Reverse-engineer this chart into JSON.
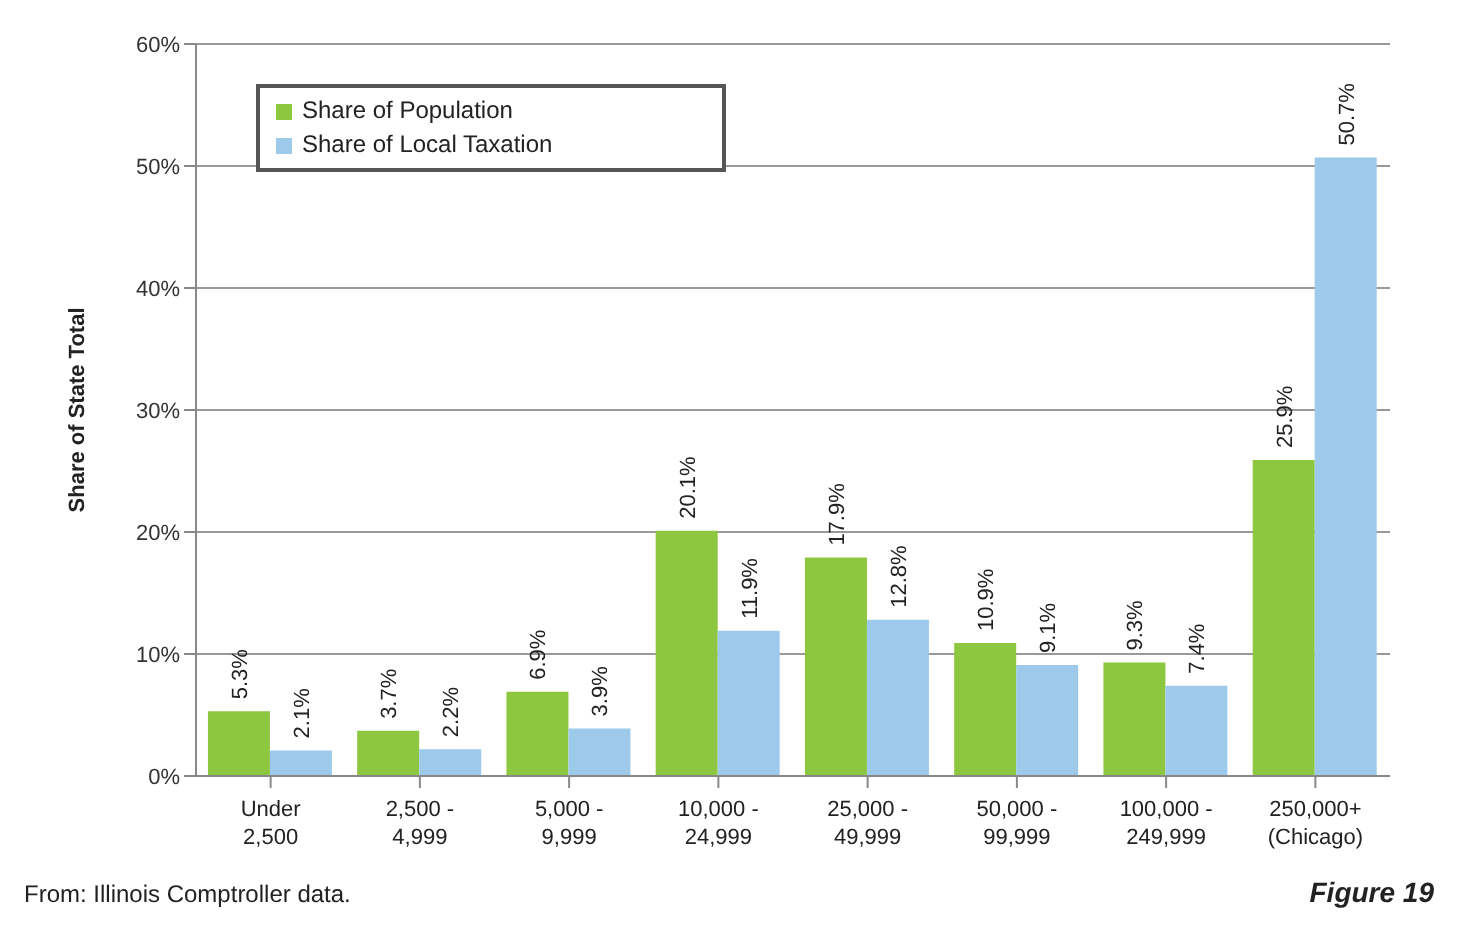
{
  "chart_data": {
    "type": "bar",
    "ylabel": "Share of State Total",
    "categories": [
      "Under\n2,500",
      "2,500 -\n4,999",
      "5,000 -\n9,999",
      "10,000 -\n24,999",
      "25,000 -\n49,999",
      "50,000 -\n99,999",
      "100,000 -\n249,999",
      "250,000+\n(Chicago)"
    ],
    "series": [
      {
        "name": "Share of Population",
        "color": "#8dc63f",
        "values": [
          5.3,
          3.7,
          6.9,
          20.1,
          17.9,
          10.9,
          9.3,
          25.9
        ],
        "value_labels": [
          "5.3%",
          "3.7%",
          "6.9%",
          "20.1%",
          "17.9%",
          "10.9%",
          "9.3%",
          "25.9%"
        ]
      },
      {
        "name": "Share of Local Taxation",
        "color": "#9dc9ea",
        "values": [
          2.1,
          2.2,
          3.9,
          11.9,
          12.8,
          9.1,
          7.4,
          50.7
        ],
        "value_labels": [
          "2.1%",
          "2.2%",
          "3.9%",
          "11.9%",
          "12.8%",
          "9.1%",
          "7.4%",
          "50.7%"
        ]
      }
    ],
    "ylim": [
      0,
      60
    ],
    "yticks": [
      {
        "value": 0,
        "label": "0%"
      },
      {
        "value": 10,
        "label": "10%"
      },
      {
        "value": 20,
        "label": "20%"
      },
      {
        "value": 30,
        "label": "30%"
      },
      {
        "value": 40,
        "label": "40%"
      },
      {
        "value": 50,
        "label": "50%"
      },
      {
        "value": 60,
        "label": "60%"
      }
    ],
    "grid": "y",
    "legend": "top left",
    "annotations": [
      "From: Illinois Comptroller data.",
      "Figure 19"
    ]
  }
}
